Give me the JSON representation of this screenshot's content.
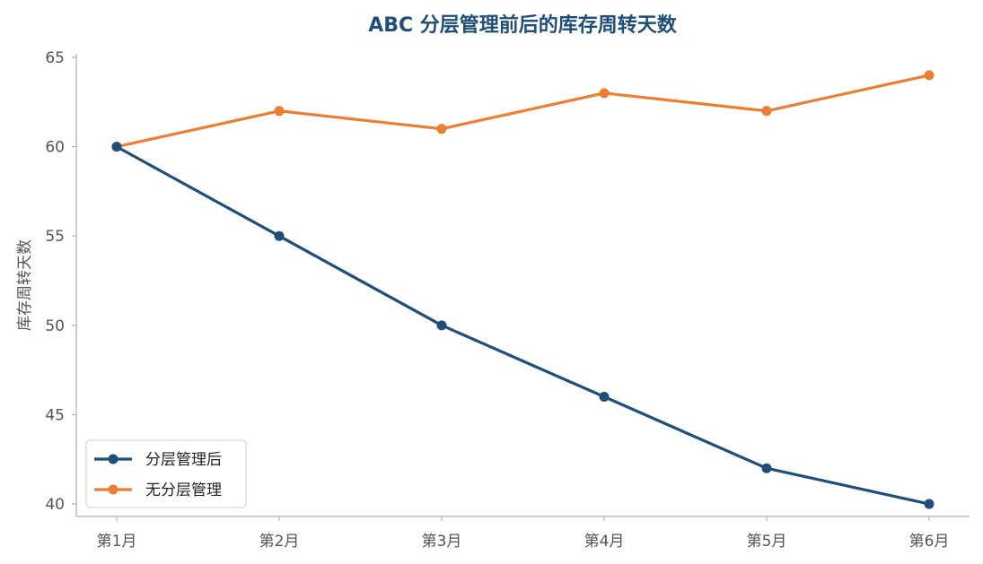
{
  "chart_data": {
    "type": "line",
    "title": "ABC 分层管理前后的库存周转天数",
    "xlabel": "",
    "ylabel": "库存周转天数",
    "categories": [
      "第1月",
      "第2月",
      "第3月",
      "第4月",
      "第5月",
      "第6月"
    ],
    "series": [
      {
        "name": "分层管理后",
        "values": [
          60,
          55,
          50,
          46,
          42,
          40
        ],
        "color": "#1f4e79"
      },
      {
        "name": "无分层管理",
        "values": [
          60,
          62,
          61,
          63,
          62,
          64
        ],
        "color": "#ed7d31"
      }
    ],
    "ylim": [
      39.3,
      65.2
    ],
    "yticks": [
      40,
      45,
      50,
      55,
      60,
      65
    ],
    "grid": false,
    "legend_position": "lower-left",
    "title_color": "#1f4e79",
    "axis_color": "#b0b0b0"
  }
}
